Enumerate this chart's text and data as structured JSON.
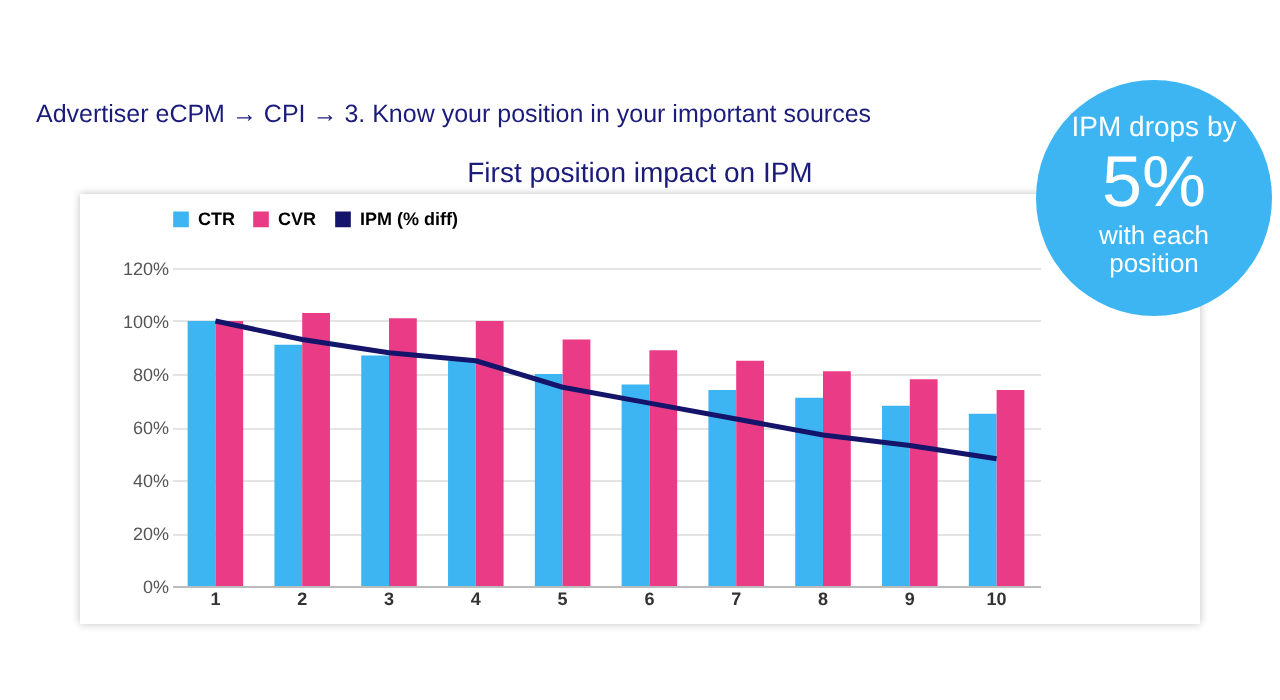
{
  "chart_data": {
    "type": "bar",
    "title": "First position impact on IPM",
    "annotations": [
      "Advertiser eCPM → CPI → 3. Know your position in your important sources",
      "IPM drops by",
      "5%",
      "with each position"
    ],
    "categories": [
      "1",
      "2",
      "3",
      "4",
      "5",
      "6",
      "7",
      "8",
      "9",
      "10"
    ],
    "series": [
      {
        "name": "CTR",
        "color": "#3db5f2",
        "values": [
          100,
          91,
          87,
          85,
          80,
          76,
          74,
          71,
          68,
          65
        ]
      },
      {
        "name": "CVR",
        "color": "#ea3b86",
        "values": [
          100,
          103,
          101,
          100,
          93,
          89,
          85,
          81,
          78,
          74
        ]
      },
      {
        "name": "IPM (% diff)",
        "type": "line",
        "color": "#14146b",
        "values": [
          100,
          93,
          88,
          85,
          75,
          69,
          63,
          57,
          53,
          48
        ]
      }
    ],
    "ylim": [
      0,
      120
    ],
    "yticks": [
      {
        "value": 0,
        "label": "0%"
      },
      {
        "value": 20,
        "label": "20%"
      },
      {
        "value": 40,
        "label": "40%"
      },
      {
        "value": 60,
        "label": "60%"
      },
      {
        "value": 80,
        "label": "80%"
      },
      {
        "value": 100,
        "label": "100%"
      },
      {
        "value": 120,
        "label": "120%"
      }
    ],
    "grid": "y",
    "legend": "top",
    "marker": "none",
    "line_style": "solid"
  }
}
